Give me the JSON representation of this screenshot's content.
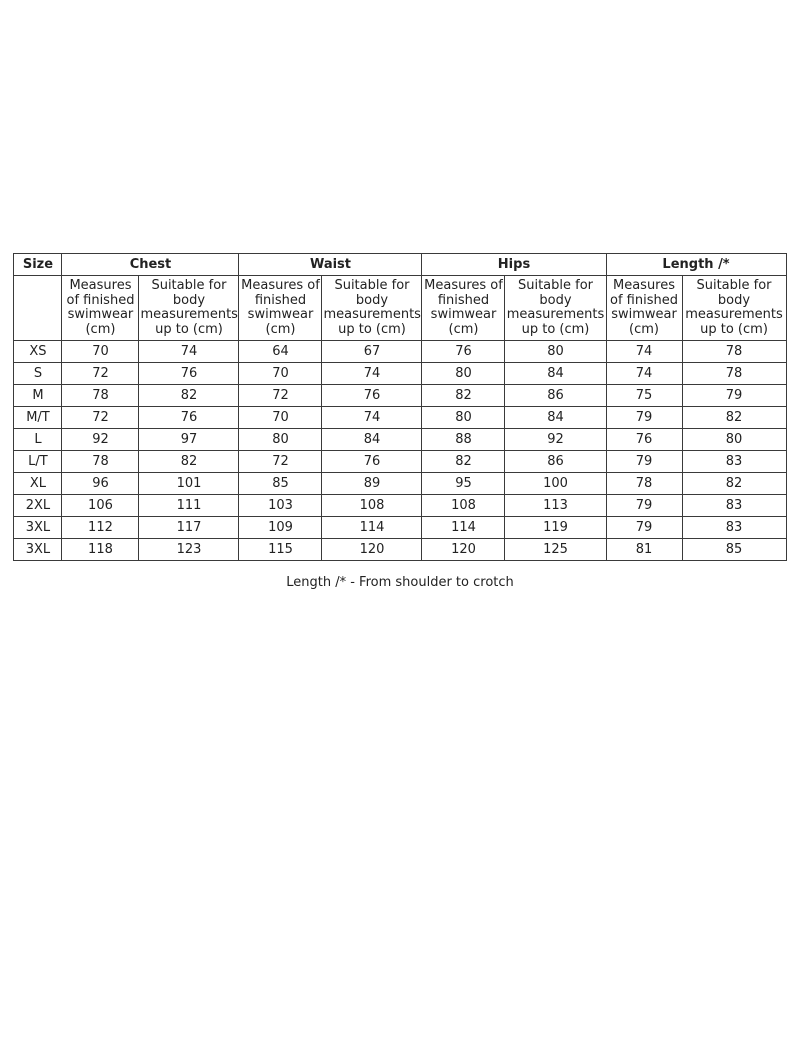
{
  "table": {
    "size_header": "Size",
    "groups": [
      {
        "label": "Chest"
      },
      {
        "label": "Waist"
      },
      {
        "label": "Hips"
      },
      {
        "label": "Length /*"
      }
    ],
    "sub_measures": "Measures of finished swimwear (cm)",
    "sub_suitable": "Suitable for body measurements up to (cm)",
    "rows": [
      {
        "size": "XS",
        "values": [
          "70",
          "74",
          "64",
          "67",
          "76",
          "80",
          "74",
          "78"
        ]
      },
      {
        "size": "S",
        "values": [
          "72",
          "76",
          "70",
          "74",
          "80",
          "84",
          "74",
          "78"
        ]
      },
      {
        "size": "M",
        "values": [
          "78",
          "82",
          "72",
          "76",
          "82",
          "86",
          "75",
          "79"
        ]
      },
      {
        "size": "M/T",
        "values": [
          "72",
          "76",
          "70",
          "74",
          "80",
          "84",
          "79",
          "82"
        ]
      },
      {
        "size": "L",
        "values": [
          "92",
          "97",
          "80",
          "84",
          "88",
          "92",
          "76",
          "80"
        ]
      },
      {
        "size": "L/T",
        "values": [
          "78",
          "82",
          "72",
          "76",
          "82",
          "86",
          "79",
          "83"
        ]
      },
      {
        "size": "XL",
        "values": [
          "96",
          "101",
          "85",
          "89",
          "95",
          "100",
          "78",
          "82"
        ]
      },
      {
        "size": "2XL",
        "values": [
          "106",
          "111",
          "103",
          "108",
          "108",
          "113",
          "79",
          "83"
        ]
      },
      {
        "size": "3XL",
        "values": [
          "112",
          "117",
          "109",
          "114",
          "114",
          "119",
          "79",
          "83"
        ]
      },
      {
        "size": "3XL",
        "values": [
          "118",
          "123",
          "115",
          "120",
          "120",
          "125",
          "81",
          "85"
        ]
      }
    ]
  },
  "footnote": "Length /* - From shoulder to crotch"
}
